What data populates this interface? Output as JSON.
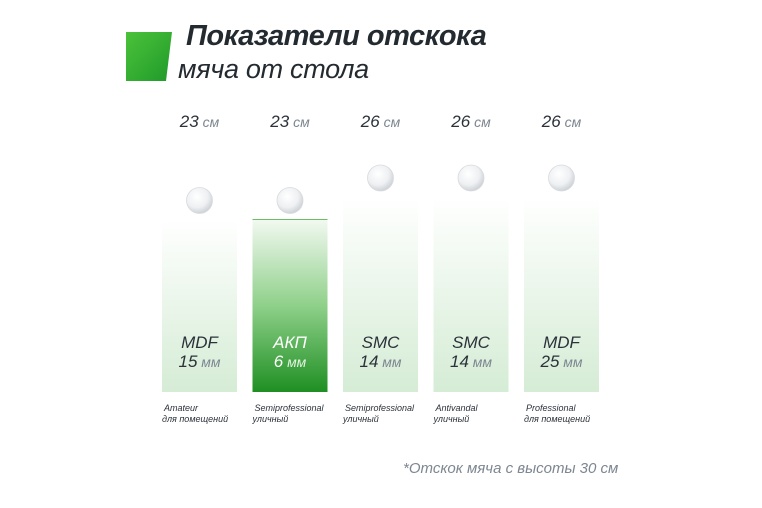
{
  "header": {
    "title_line1": "Показатели отскока",
    "title_line2": "мяча от стола"
  },
  "colors": {
    "accent": "#2aa52a",
    "bar_light": "#dcefdc",
    "text": "#2b323a",
    "unit": "#7d8690"
  },
  "chart_data": {
    "type": "bar",
    "title": "Показатели отскока мяча от стола",
    "ylim": [
      0,
      30
    ],
    "unit": "см",
    "value_unit_label": "см",
    "thickness_unit_label": "мм",
    "highlight_index": 1,
    "bars": [
      {
        "bounce": 23,
        "material": "MDF",
        "thickness": 15,
        "category": "Amateur",
        "usage": "для помещений"
      },
      {
        "bounce": 23,
        "material": "АКП",
        "thickness": 6,
        "category": "Semiprofessional",
        "usage": "уличный"
      },
      {
        "bounce": 26,
        "material": "SMC",
        "thickness": 14,
        "category": "Semiprofessional",
        "usage": "уличный"
      },
      {
        "bounce": 26,
        "material": "SMC",
        "thickness": 14,
        "category": "Antivandal",
        "usage": "уличный"
      },
      {
        "bounce": 26,
        "material": "MDF",
        "thickness": 25,
        "category": "Professional",
        "usage": "для помещений"
      }
    ]
  },
  "footnote": "*Отскок мяча с высоты 30 см"
}
